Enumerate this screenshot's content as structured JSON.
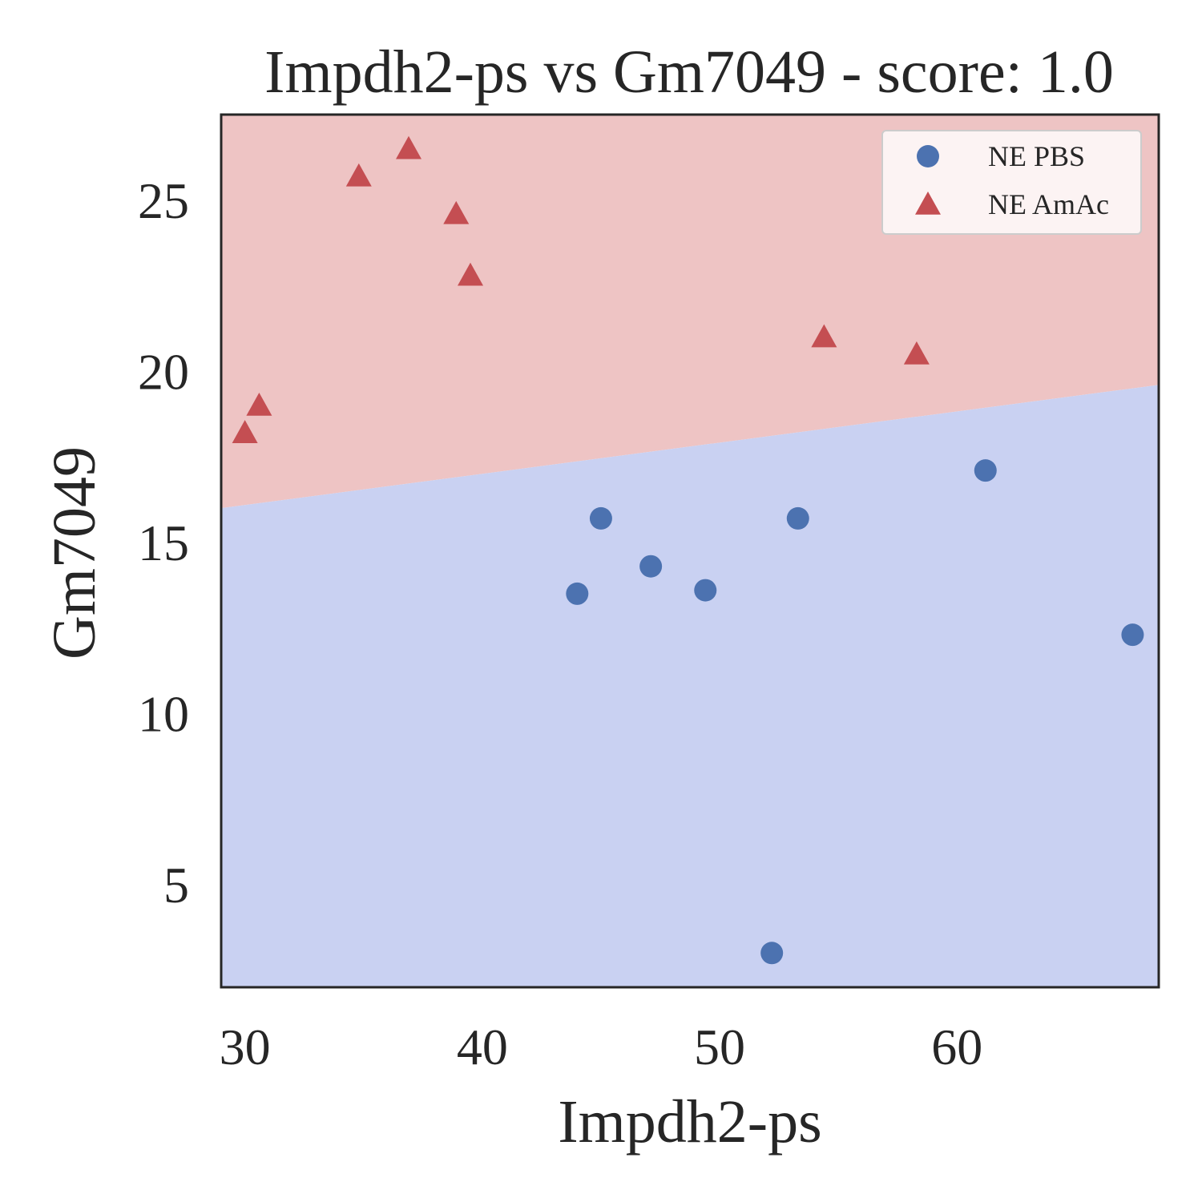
{
  "chart_data": {
    "type": "scatter",
    "title": "Impdh2-ps vs Gm7049 - score: 1.0",
    "xlabel": "Impdh2-ps",
    "ylabel": "Gm7049",
    "xlim": [
      29,
      68.5
    ],
    "ylim": [
      2,
      27.5
    ],
    "xticks": [
      30,
      40,
      50,
      60
    ],
    "yticks": [
      5,
      10,
      15,
      20,
      25
    ],
    "grid": false,
    "legend_position": "top-right",
    "decision_boundary": {
      "x": [
        29,
        68.5
      ],
      "y": [
        16.0,
        19.6
      ]
    },
    "region_colors": {
      "above": "#eec4c4",
      "below": "#c9d1f2"
    },
    "series": [
      {
        "name": "NE PBS",
        "marker": "circle",
        "color": "#4c72b0",
        "points": [
          {
            "x": 44.0,
            "y": 13.5
          },
          {
            "x": 45.0,
            "y": 15.7
          },
          {
            "x": 47.1,
            "y": 14.3
          },
          {
            "x": 49.4,
            "y": 13.6
          },
          {
            "x": 52.2,
            "y": 3.0
          },
          {
            "x": 53.3,
            "y": 15.7
          },
          {
            "x": 61.2,
            "y": 17.1
          },
          {
            "x": 67.4,
            "y": 12.3
          }
        ]
      },
      {
        "name": "NE AmAc",
        "marker": "triangle",
        "color": "#c44e52",
        "points": [
          {
            "x": 30.0,
            "y": 18.2
          },
          {
            "x": 30.6,
            "y": 19.0
          },
          {
            "x": 34.8,
            "y": 25.7
          },
          {
            "x": 36.9,
            "y": 26.5
          },
          {
            "x": 38.9,
            "y": 24.6
          },
          {
            "x": 39.5,
            "y": 22.8
          },
          {
            "x": 54.4,
            "y": 21.0
          },
          {
            "x": 58.3,
            "y": 20.5
          }
        ]
      }
    ]
  }
}
